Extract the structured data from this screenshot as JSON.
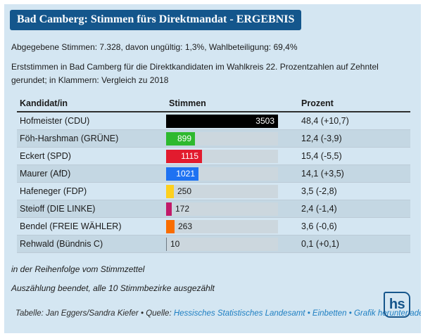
{
  "header": {
    "title": "Bad Camberg: Stimmen fürs Direktmandat - ERGEBNIS",
    "intro": "Abgegebene Stimmen: 7.328, davon ungültig: 1,3%, Wahlbeteiligung: 69,4%",
    "description": "Erststimmen in Bad Camberg für die Direktkandidaten im Wahlkreis 22. Prozentzahlen auf Zehntel gerundet; in Klammern: Vergleich zu 2018"
  },
  "chart_data": {
    "type": "table",
    "title": "Bad Camberg: Stimmen fürs Direktmandat - ERGEBNIS",
    "columns": [
      "Kandidat/in",
      "Stimmen",
      "Prozent"
    ],
    "max_votes": 3503,
    "bar_track_color": "#ccd7de",
    "rows": [
      {
        "candidate": "Hofmeister (CDU)",
        "votes": 3503,
        "percent": "48,4 (+10,7)",
        "party_color": "#000000"
      },
      {
        "candidate": "Föh-Harshman (GRÜNE)",
        "votes": 899,
        "percent": "12,4 (-3,9)",
        "party_color": "#2eb92e"
      },
      {
        "candidate": "Eckert (SPD)",
        "votes": 1115,
        "percent": "15,4 (-5,5)",
        "party_color": "#e21b2e"
      },
      {
        "candidate": "Maurer (AfD)",
        "votes": 1021,
        "percent": "14,1 (+3,5)",
        "party_color": "#1e72f2"
      },
      {
        "candidate": "Hafeneger (FDP)",
        "votes": 250,
        "percent": "3,5 (-2,8)",
        "party_color": "#fdd01e"
      },
      {
        "candidate": "Steioff (DIE LINKE)",
        "votes": 172,
        "percent": "2,4 (-1,4)",
        "party_color": "#c11a69"
      },
      {
        "candidate": "Bendel (FREIE WÄHLER)",
        "votes": 263,
        "percent": "3,6 (-0,6)",
        "party_color": "#f96d00"
      },
      {
        "candidate": "Rehwald (Bündnis C)",
        "votes": 10,
        "percent": "0,1 (+0,1)",
        "party_color": "#6e7a84"
      }
    ]
  },
  "footnotes": {
    "order_note": "in der Reihenfolge vom Stimmzettel",
    "status_note": "Auszählung beendet, alle 10 Stimmbezirke ausgezählt"
  },
  "footer": {
    "credit_label": "Tabelle:",
    "credit": "Jan Eggers/Sandra Kiefer",
    "source_label": "Quelle:",
    "source_link": "Hessisches Statistisches Landesamt",
    "embed_link": "Einbetten",
    "download_link": "Grafik herunterladen",
    "separator": "•"
  },
  "logo": {
    "text": "hs"
  },
  "colors": {
    "card_background": "#d4e6f2",
    "badge_background": "#14568c",
    "link_blue": "#1e7fc2",
    "logo_blue": "#16568c"
  }
}
